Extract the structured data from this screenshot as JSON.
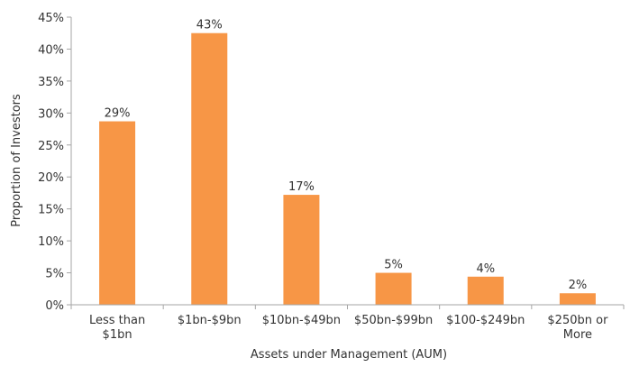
{
  "chart_data": {
    "type": "bar",
    "categories": [
      [
        "Less than",
        "$1bn"
      ],
      [
        "$1bn-$9bn"
      ],
      [
        "$10bn-$49bn"
      ],
      [
        "$50bn-$99bn"
      ],
      [
        "$100-$249bn"
      ],
      [
        "$250bn or",
        "More"
      ]
    ],
    "values": [
      28.7,
      42.5,
      17.2,
      5.0,
      4.4,
      1.8
    ],
    "data_labels": [
      "29%",
      "43%",
      "17%",
      "5%",
      "4%",
      "2%"
    ],
    "title": "",
    "xlabel": "Assets under Management (AUM)",
    "ylabel": "Proportion of Investors",
    "ylim": [
      0,
      45
    ],
    "yticks": [
      0,
      5,
      10,
      15,
      20,
      25,
      30,
      35,
      40,
      45
    ],
    "ytick_labels": [
      "0%",
      "5%",
      "10%",
      "15%",
      "20%",
      "25%",
      "30%",
      "35%",
      "40%",
      "45%"
    ],
    "grid": false,
    "legend": "none",
    "bar_color": "#F79646",
    "axis_color": "#A6A6A6"
  }
}
